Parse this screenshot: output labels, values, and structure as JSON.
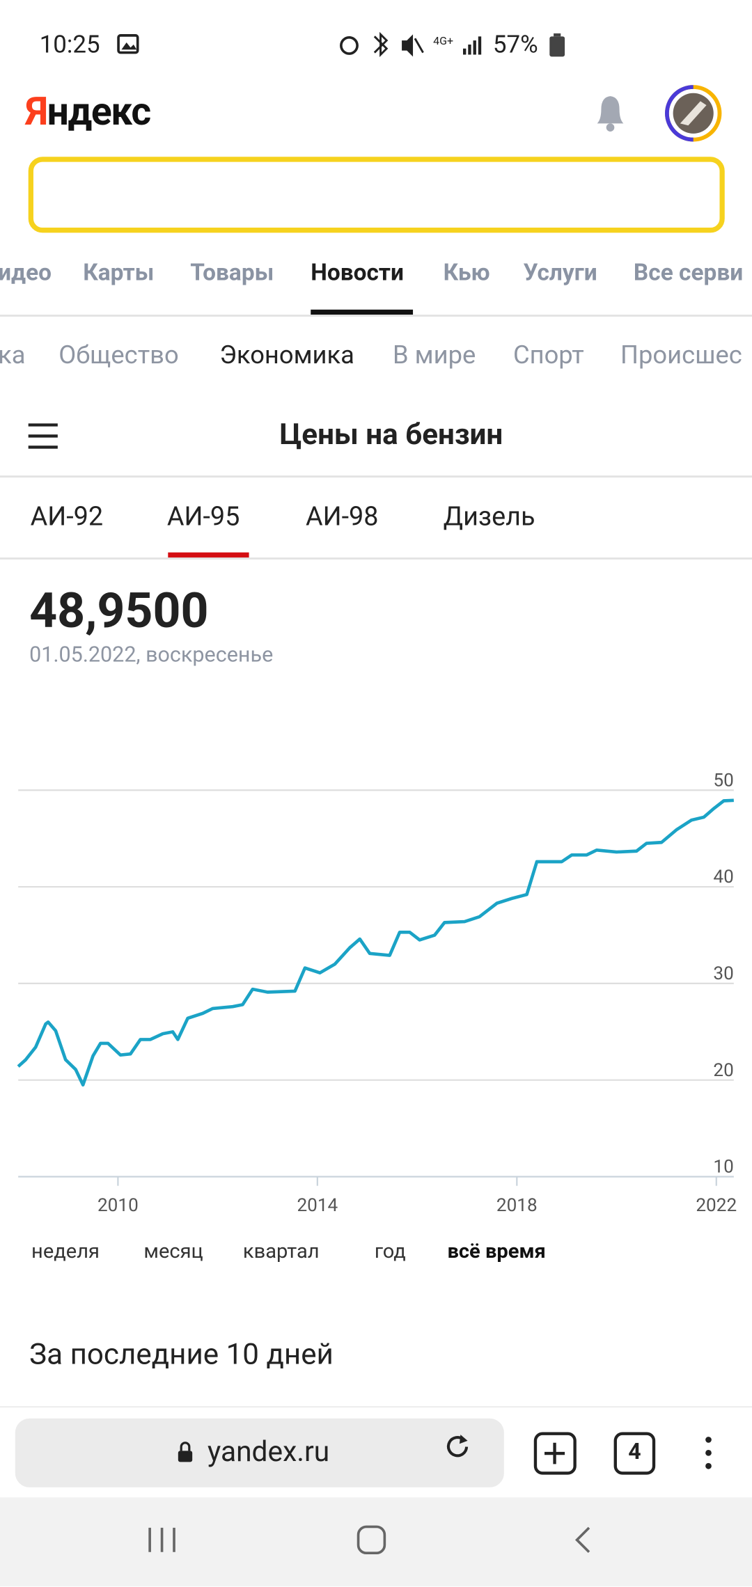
{
  "status_bar": {
    "time": "10:25",
    "battery": "57%"
  },
  "header": {
    "logo": "Яндекс"
  },
  "services": [
    "идео",
    "Карты",
    "Товары",
    "Новости",
    "Кью",
    "Услуги",
    "Все серви"
  ],
  "rubrics": [
    "ка",
    "Общество",
    "Экономика",
    "В мире",
    "Спорт",
    "Происшес"
  ],
  "page_title": "Цены на бензин",
  "fuel_tabs": [
    "АИ-92",
    "АИ-95",
    "АИ-98",
    "Дизель"
  ],
  "current": {
    "price": "48,9500",
    "date": "01.05.2022, воскресенье"
  },
  "chart_data": {
    "type": "line",
    "x": [
      2008.0,
      2008.15,
      2008.35,
      2008.55,
      2008.6,
      2008.75,
      2008.95,
      2009.15,
      2009.3,
      2009.5,
      2009.65,
      2009.8,
      2010.05,
      2010.25,
      2010.45,
      2010.65,
      2010.9,
      2011.1,
      2011.2,
      2011.4,
      2011.7,
      2011.9,
      2012.3,
      2012.5,
      2012.7,
      2013.0,
      2013.55,
      2013.75,
      2014.05,
      2014.35,
      2014.65,
      2014.85,
      2015.05,
      2015.45,
      2015.65,
      2015.85,
      2016.05,
      2016.35,
      2016.55,
      2016.95,
      2017.25,
      2017.6,
      2017.9,
      2018.2,
      2018.4,
      2018.9,
      2019.1,
      2019.4,
      2019.6,
      2020.0,
      2020.4,
      2020.6,
      2020.9,
      2021.2,
      2021.5,
      2021.75,
      2021.95,
      2022.15,
      2022.35
    ],
    "values": [
      21.4,
      22.1,
      23.4,
      25.8,
      26.0,
      25.1,
      22.1,
      21.1,
      19.5,
      22.5,
      23.8,
      23.8,
      22.6,
      22.7,
      24.2,
      24.2,
      24.8,
      25.0,
      24.2,
      26.4,
      26.9,
      27.4,
      27.6,
      27.8,
      29.4,
      29.1,
      29.2,
      31.6,
      31.1,
      32.0,
      33.7,
      34.6,
      33.1,
      32.9,
      35.3,
      35.3,
      34.5,
      35.0,
      36.3,
      36.4,
      36.9,
      38.3,
      38.8,
      39.2,
      42.6,
      42.6,
      43.3,
      43.3,
      43.8,
      43.6,
      43.7,
      44.5,
      44.6,
      45.9,
      46.9,
      47.2,
      48.1,
      48.9,
      48.95
    ],
    "color": "#1ba3c6",
    "xlim": [
      2008.0,
      2022.35
    ],
    "ylim": [
      10,
      50
    ],
    "xticks": [
      2010,
      2014,
      2018,
      2022
    ],
    "yticks": [
      10,
      20,
      30,
      40,
      50
    ],
    "grid": true
  },
  "periods": [
    "неделя",
    "месяц",
    "квартал",
    "год",
    "всё время"
  ],
  "section_title": "За последние 10 дней",
  "browser": {
    "url": "yandex.ru",
    "tabs": "4"
  }
}
